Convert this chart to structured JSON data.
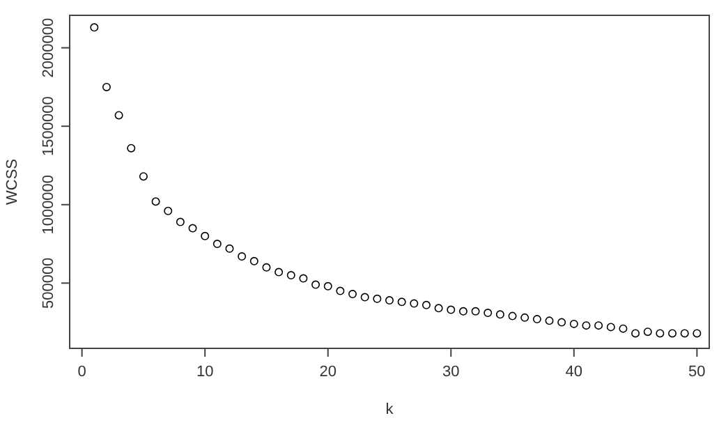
{
  "chart_data": {
    "type": "scatter",
    "xlabel": "k",
    "ylabel": "WCSS",
    "marker": "circle",
    "x": [
      1,
      2,
      3,
      4,
      5,
      6,
      7,
      8,
      9,
      10,
      11,
      12,
      13,
      14,
      15,
      16,
      17,
      18,
      19,
      20,
      21,
      22,
      23,
      24,
      25,
      26,
      27,
      28,
      29,
      30,
      31,
      32,
      33,
      34,
      35,
      36,
      37,
      38,
      39,
      40,
      41,
      42,
      43,
      44,
      45,
      46,
      47,
      48,
      49,
      50
    ],
    "series": [
      {
        "color": "#000000",
        "values": [
          2130000,
          1750000,
          1570000,
          1360000,
          1180000,
          1020000,
          960000,
          890000,
          850000,
          800000,
          750000,
          720000,
          670000,
          640000,
          600000,
          570000,
          550000,
          530000,
          490000,
          480000,
          450000,
          430000,
          410000,
          400000,
          390000,
          380000,
          370000,
          360000,
          340000,
          330000,
          320000,
          320000,
          310000,
          300000,
          290000,
          280000,
          270000,
          260000,
          250000,
          240000,
          230000,
          230000,
          220000,
          210000,
          180000,
          190000,
          180000,
          180000,
          180000,
          180000
        ]
      }
    ],
    "xlim": [
      -1,
      51
    ],
    "ylim": [
      84000,
      2207000
    ],
    "xticks": [
      0,
      10,
      20,
      30,
      40,
      50
    ],
    "yticks": [
      500000,
      1000000,
      1500000,
      2000000
    ]
  }
}
